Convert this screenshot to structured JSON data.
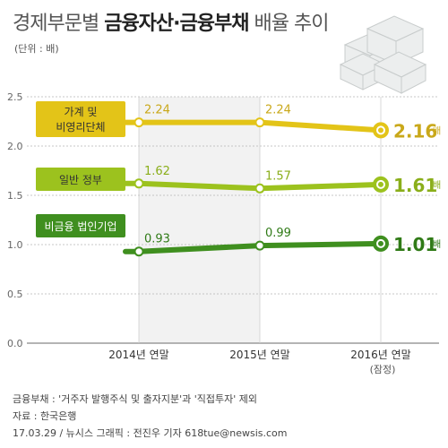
{
  "header": {
    "title_prefix": "경제부문별",
    "title_bold": "금융자산·금융부채",
    "title_suffix": "배율 추이",
    "unit": "(단위 : 배)"
  },
  "chart_data": {
    "type": "line",
    "categories": [
      "2014년 연말",
      "2015년 연말",
      "2016년 연말"
    ],
    "category_note": "(잠정)",
    "ylim": [
      0,
      2.5
    ],
    "yticks": [
      "0.0",
      "0.5",
      "1.0",
      "1.5",
      "2.0",
      "2.5"
    ],
    "value_suffix": "배",
    "series": [
      {
        "name": "가계 및 비영리단체",
        "values": [
          2.24,
          2.24,
          2.16
        ],
        "labels": [
          "2.24",
          "2.24",
          "2.16"
        ],
        "color": "#e3c418",
        "label_color": "#c9a81a"
      },
      {
        "name": "일반 정부",
        "values": [
          1.62,
          1.57,
          1.61
        ],
        "labels": [
          "1.62",
          "1.57",
          "1.61"
        ],
        "color": "#9cc21e",
        "label_color": "#8aae1a"
      },
      {
        "name": "비금융 법인기업",
        "values": [
          0.93,
          0.99,
          1.01
        ],
        "labels": [
          "0.93",
          "0.99",
          "1.01"
        ],
        "color": "#3f8f1f",
        "label_color": "#2f7a16"
      }
    ]
  },
  "notes": {
    "line1": "금융부채 : '거주자 발행주식 및 출자지분'과 '직접투자' 제외",
    "line2": "자료 : 한국은행",
    "line3": "17.03.29 / 뉴시스 그래픽 : 전진우 기자 618tue@newsis.com"
  }
}
